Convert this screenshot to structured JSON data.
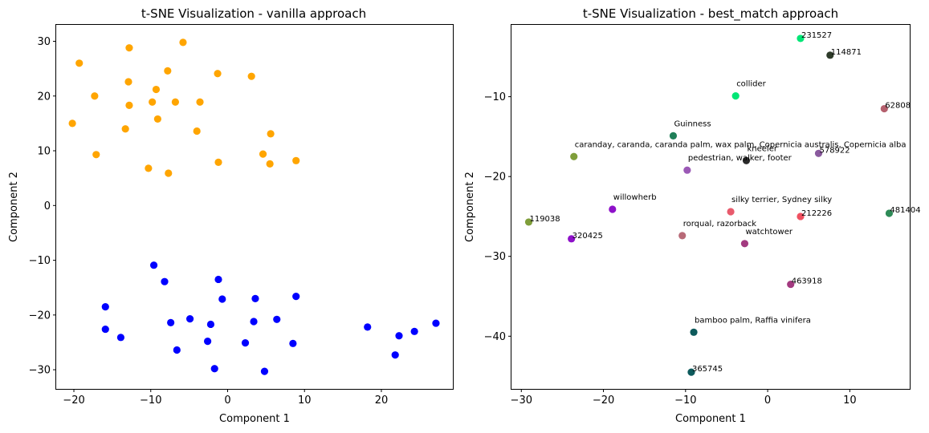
{
  "chart_data": [
    {
      "type": "scatter",
      "title": "t-SNE Visualization - vanilla approach",
      "xlabel": "Component 1",
      "ylabel": "Component 2",
      "xlim": [
        -22.3,
        29.3
      ],
      "ylim": [
        -33.5,
        33.0
      ],
      "xticks": [
        -20,
        -10,
        0,
        10,
        20
      ],
      "yticks": [
        -30,
        -20,
        -10,
        0,
        10,
        20,
        30
      ],
      "grid": false,
      "series": [
        {
          "color": "#ffa500",
          "points": [
            [
              -12.8,
              28.8
            ],
            [
              -5.8,
              29.8
            ],
            [
              -19.3,
              26.0
            ],
            [
              -7.8,
              24.6
            ],
            [
              -1.3,
              24.1
            ],
            [
              3.1,
              23.6
            ],
            [
              -12.9,
              22.6
            ],
            [
              -9.3,
              21.2
            ],
            [
              -17.3,
              20.0
            ],
            [
              -9.8,
              18.9
            ],
            [
              -6.8,
              18.9
            ],
            [
              -3.6,
              18.9
            ],
            [
              -12.8,
              18.3
            ],
            [
              -9.1,
              15.8
            ],
            [
              -20.2,
              15.0
            ],
            [
              -13.3,
              14.0
            ],
            [
              -4.0,
              13.6
            ],
            [
              5.6,
              13.1
            ],
            [
              -17.1,
              9.3
            ],
            [
              4.6,
              9.4
            ],
            [
              8.9,
              8.2
            ],
            [
              -1.2,
              7.9
            ],
            [
              5.5,
              7.6
            ],
            [
              -10.3,
              6.8
            ],
            [
              -7.7,
              5.9
            ]
          ]
        },
        {
          "color": "#0000ff",
          "points": [
            [
              -9.6,
              -10.9
            ],
            [
              -8.2,
              -13.9
            ],
            [
              -1.2,
              -13.5
            ],
            [
              -15.9,
              -18.5
            ],
            [
              -0.7,
              -17.1
            ],
            [
              3.6,
              -17.0
            ],
            [
              8.9,
              -16.6
            ],
            [
              -7.4,
              -21.4
            ],
            [
              -4.9,
              -20.7
            ],
            [
              -2.2,
              -21.7
            ],
            [
              3.4,
              -21.2
            ],
            [
              6.4,
              -20.8
            ],
            [
              18.2,
              -22.2
            ],
            [
              -15.9,
              -22.6
            ],
            [
              -13.9,
              -24.1
            ],
            [
              -2.6,
              -24.8
            ],
            [
              2.3,
              -25.1
            ],
            [
              8.5,
              -25.2
            ],
            [
              24.3,
              -23.0
            ],
            [
              22.3,
              -23.8
            ],
            [
              27.1,
              -21.5
            ],
            [
              -6.6,
              -26.4
            ],
            [
              21.8,
              -27.3
            ],
            [
              -1.7,
              -29.8
            ],
            [
              4.8,
              -30.3
            ]
          ]
        }
      ]
    },
    {
      "type": "scatter",
      "title": "t-SNE Visualization - best_match approach",
      "xlabel": "Component 1",
      "ylabel": "Component 2",
      "xlim": [
        -31.2,
        17.3
      ],
      "ylim": [
        -46.6,
        -1.0
      ],
      "xticks": [
        -30,
        -20,
        -10,
        0,
        10
      ],
      "yticks": [
        -40,
        -30,
        -20,
        -10
      ],
      "grid": false,
      "points": [
        {
          "x": 4.0,
          "y": -2.7,
          "label": "231527",
          "color": "#00e676"
        },
        {
          "x": 7.6,
          "y": -4.8,
          "label": "114871",
          "color": "#2e3b2a"
        },
        {
          "x": -3.9,
          "y": -9.9,
          "label": "collider",
          "color": "#00e676"
        },
        {
          "x": 14.2,
          "y": -11.5,
          "label": "62808",
          "color": "#b5606e"
        },
        {
          "x": -11.5,
          "y": -14.9,
          "label": "Guinness",
          "color": "#1f7f58"
        },
        {
          "x": -23.6,
          "y": -17.5,
          "label": "caranday, caranda, caranda palm, wax palm, Copernicia australis, Copernicia alba",
          "color": "#7f9e3a"
        },
        {
          "x": 6.2,
          "y": -17.1,
          "label": "578922",
          "color": "#8a5a9e"
        },
        {
          "x": -2.6,
          "y": -18.0,
          "label": "kneeler",
          "color": "#2a2a2a"
        },
        {
          "x": -9.8,
          "y": -19.2,
          "label": "pedestrian, walker, footer",
          "color": "#9b59b6"
        },
        {
          "x": -18.9,
          "y": -24.1,
          "label": "willowherb",
          "color": "#8e11c9"
        },
        {
          "x": -4.5,
          "y": -24.4,
          "label": "silky terrier, Sydney silky",
          "color": "#e85a6c"
        },
        {
          "x": 4.0,
          "y": -25.0,
          "label": "212226",
          "color": "#ef5060"
        },
        {
          "x": 14.8,
          "y": -24.6,
          "label": "481404",
          "color": "#2e8b57"
        },
        {
          "x": -29.1,
          "y": -25.7,
          "label": "119038",
          "color": "#7f9e3a"
        },
        {
          "x": -10.4,
          "y": -27.4,
          "label": "rorqual, razorback",
          "color": "#b86a78"
        },
        {
          "x": -23.9,
          "y": -27.8,
          "label": "320425",
          "color": "#8e11c9"
        },
        {
          "x": -2.8,
          "y": -28.4,
          "label": "watchtower",
          "color": "#a33a80"
        },
        {
          "x": 2.8,
          "y": -33.5,
          "label": "463918",
          "color": "#a33a80"
        },
        {
          "x": -9.0,
          "y": -39.5,
          "label": "bamboo palm, Raffia vinifera",
          "color": "#0d5a5c"
        },
        {
          "x": -9.3,
          "y": -44.5,
          "label": "365745",
          "color": "#0d5a5c"
        }
      ]
    }
  ]
}
